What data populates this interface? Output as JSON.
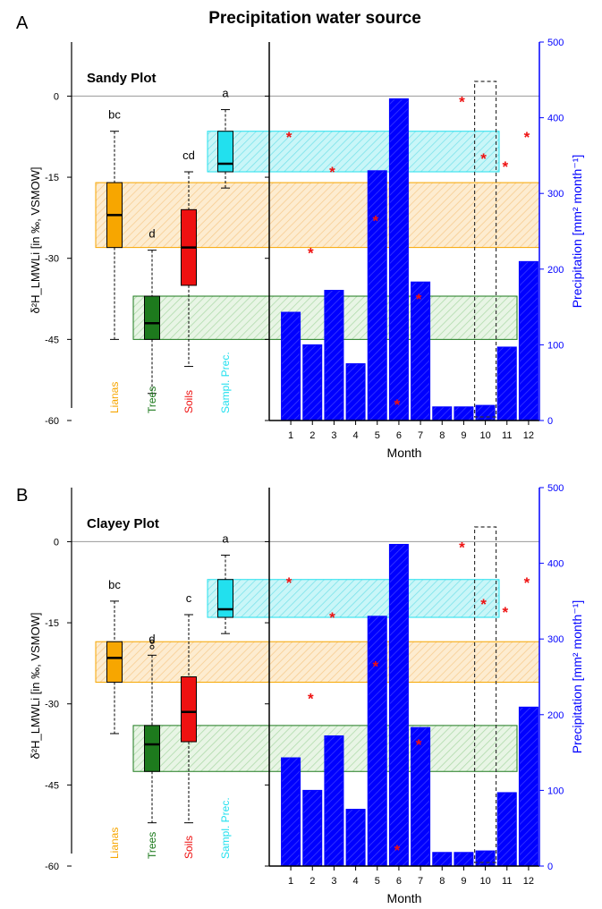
{
  "figure_title": "Precipitation water source",
  "colors": {
    "lianas": "#f7a600",
    "trees": "#1d7a1d",
    "soils": "#ee1111",
    "sampled": "#22e0ee",
    "bars": "#0000ff",
    "stars": "#ee1111",
    "zero_line": "#999999"
  },
  "chart_data": [
    {
      "type": "boxplot+bar",
      "panel_letter": "A",
      "title": "Sandy Plot",
      "ylabel_left": "δ²H_LMWLi [in ‰, VSMOW]",
      "ylabel_right": "Precipitation [mm² month⁻¹]",
      "xlabel": "Month",
      "ylim_left": [
        -60,
        10
      ],
      "ylim_right": [
        0,
        500
      ],
      "left_ticks": [
        0,
        -15,
        -30,
        -45,
        -60
      ],
      "right_ticks": [
        0,
        100,
        200,
        300,
        400,
        500
      ],
      "months": [
        "1",
        "2",
        "3",
        "4",
        "5",
        "6",
        "7",
        "8",
        "9",
        "10",
        "11",
        "12"
      ],
      "precipitation": [
        143,
        100,
        172,
        75,
        330,
        425,
        183,
        18,
        18,
        20,
        97,
        210
      ],
      "monthly_d2H": [
        -7.5,
        -29,
        -14,
        null,
        -23,
        -57,
        -37.5,
        null,
        -1,
        -11.5,
        -13,
        -7.5
      ],
      "groups": [
        {
          "name": "Lianas",
          "letter": "bc",
          "min": -45,
          "q1": -28,
          "median": -22,
          "q3": -16,
          "max": -6.5,
          "outliers": []
        },
        {
          "name": "Trees",
          "letter": "d",
          "min": -55,
          "q1": -45,
          "median": -42,
          "q3": -37,
          "max": -28.5,
          "outliers": []
        },
        {
          "name": "Soils",
          "letter": "cd",
          "min": -50,
          "q1": -35,
          "median": -28,
          "q3": -21,
          "max": -14,
          "outliers": []
        },
        {
          "name": "Sampl. Prec.",
          "letter": "a",
          "min": -17,
          "q1": -14,
          "median": -12.5,
          "q3": -6.5,
          "max": -2.5,
          "outliers": []
        }
      ]
    },
    {
      "type": "boxplot+bar",
      "panel_letter": "B",
      "title": "Clayey Plot",
      "ylabel_left": "δ²H_LMWLi [in ‰, VSMOW]",
      "ylabel_right": "Precipitation [mm² month⁻¹]",
      "xlabel": "Month",
      "ylim_left": [
        -60,
        10
      ],
      "ylim_right": [
        0,
        500
      ],
      "left_ticks": [
        0,
        -15,
        -30,
        -45,
        -60
      ],
      "right_ticks": [
        0,
        100,
        200,
        300,
        400,
        500
      ],
      "months": [
        "1",
        "2",
        "3",
        "4",
        "5",
        "6",
        "7",
        "8",
        "9",
        "10",
        "11",
        "12"
      ],
      "precipitation": [
        143,
        100,
        172,
        75,
        330,
        425,
        183,
        18,
        18,
        20,
        97,
        210
      ],
      "monthly_d2H": [
        -7.5,
        -29,
        -14,
        null,
        -23,
        -57,
        -37.5,
        null,
        -1,
        -11.5,
        -13,
        -7.5
      ],
      "groups": [
        {
          "name": "Lianas",
          "letter": "bc",
          "min": -35.5,
          "q1": -26,
          "median": -21.5,
          "q3": -18.5,
          "max": -11,
          "outliers": []
        },
        {
          "name": "Trees",
          "letter": "d",
          "min": -52,
          "q1": -42.5,
          "median": -37.5,
          "q3": -34,
          "max": -21,
          "outliers": [
            -18.5,
            -19.5
          ]
        },
        {
          "name": "Soils",
          "letter": "c",
          "min": -52,
          "q1": -37,
          "median": -31.5,
          "q3": -25,
          "max": -13.5,
          "outliers": []
        },
        {
          "name": "Sampl. Prec.",
          "letter": "a",
          "min": -17,
          "q1": -14,
          "median": -12.5,
          "q3": -7,
          "max": -2.5,
          "outliers": []
        }
      ]
    }
  ]
}
